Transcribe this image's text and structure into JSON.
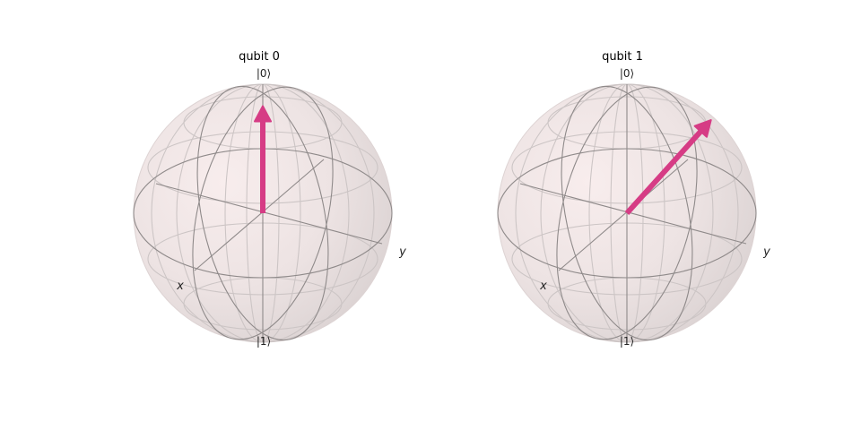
{
  "figure": {
    "spheres": [
      {
        "title": "qubit 0",
        "labels": {
          "top": "|0⟩",
          "bottom": "|1⟩",
          "x": "x",
          "y": "y"
        },
        "vector": {
          "x": 0.0,
          "y": 0.0,
          "z": 1.0
        }
      },
      {
        "title": "qubit 1",
        "labels": {
          "top": "|0⟩",
          "bottom": "|1⟩",
          "x": "x",
          "y": "y"
        },
        "vector": {
          "x": 0.0,
          "y": 0.7071,
          "z": 0.7071
        }
      }
    ],
    "colors": {
      "vector": "#d63c85",
      "sphere_fill": "#f1e8e8",
      "grid_major": "#8f8a8a",
      "grid_minor": "#cbc4c4"
    }
  }
}
